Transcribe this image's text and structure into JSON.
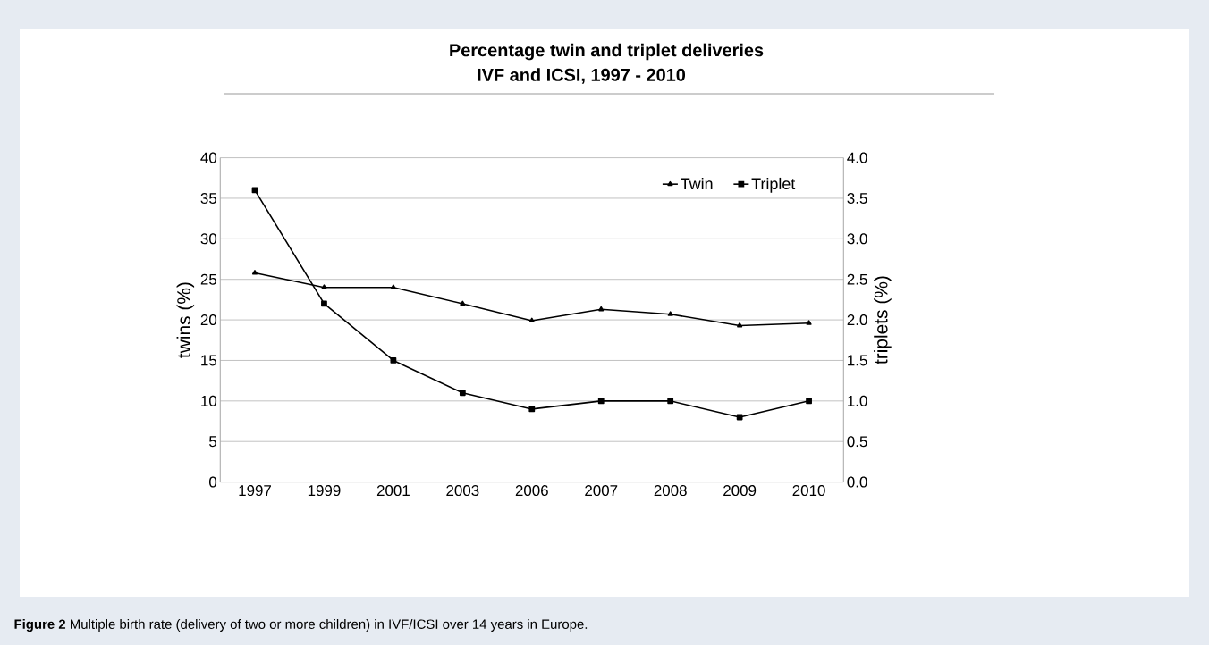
{
  "chart_data": {
    "type": "line",
    "title": "Percentage twin and triplet deliveries",
    "subtitle": "IVF and ICSI, 1997 - 2010",
    "ylabel": "twins (%)",
    "y2label": "triplets (%)",
    "categories": [
      "1997",
      "1999",
      "2001",
      "2003",
      "2006",
      "2007",
      "2008",
      "2009",
      "2010"
    ],
    "series": [
      {
        "name": "Twin",
        "color": "#000000",
        "marker": "triangle",
        "values": [
          25.8,
          24,
          24,
          22,
          19.9,
          21.3,
          20.7,
          19.3,
          19.6
        ]
      },
      {
        "name": "Triplet",
        "color": "#000000",
        "marker": "square",
        "axis": "y2",
        "values": [
          3.6,
          2.2,
          1.5,
          1.1,
          0.9,
          1.0,
          1.0,
          0.8,
          1.0
        ]
      }
    ],
    "ylim": [
      0,
      40
    ],
    "yticks": [
      0,
      5,
      10,
      15,
      20,
      25,
      30,
      35,
      40
    ],
    "y2lim": [
      0,
      4
    ],
    "y2ticks": [
      {
        "value": 0,
        "label": "0.0"
      },
      {
        "value": 0.5,
        "label": "0.5"
      },
      {
        "value": 1,
        "label": "1.0"
      },
      {
        "value": 1.5,
        "label": "1.5"
      },
      {
        "value": 2,
        "label": "2.0"
      },
      {
        "value": 2.5,
        "label": "2.5"
      },
      {
        "value": 3,
        "label": "3.0"
      },
      {
        "value": 3.5,
        "label": "3.5"
      },
      {
        "value": 4,
        "label": "4.0"
      }
    ],
    "grid": "y",
    "legend": "top right",
    "line_style": "solid",
    "annotations": [
      "**Figure 2** Multiple birth rate (delivery of two or more children) in IVF/ICSI over 14 years in Europe."
    ]
  }
}
